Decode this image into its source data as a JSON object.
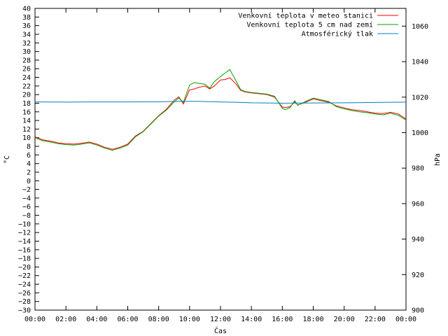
{
  "chart_data": {
    "type": "line",
    "xlabel": "Čas",
    "ylabel": "°C",
    "y2label": "hPa",
    "xlim": [
      0,
      24
    ],
    "ylim": [
      -30,
      40
    ],
    "y2lim": [
      900,
      1070
    ],
    "x_ticks": [
      "00:00",
      "02:00",
      "04:00",
      "06:00",
      "08:00",
      "10:00",
      "12:00",
      "14:00",
      "16:00",
      "18:00",
      "20:00",
      "22:00",
      "00:00"
    ],
    "y_ticks": [
      -30,
      -28,
      -26,
      -24,
      -22,
      -20,
      -18,
      -16,
      -14,
      -12,
      -10,
      -8,
      -6,
      -4,
      -2,
      0,
      2,
      4,
      6,
      8,
      10,
      12,
      14,
      16,
      18,
      20,
      22,
      24,
      26,
      28,
      30,
      32,
      34,
      36,
      38,
      40
    ],
    "y2_ticks": [
      900,
      920,
      940,
      960,
      980,
      1000,
      1020,
      1040,
      1060
    ],
    "grid": false,
    "legend_position": "top-right",
    "series": [
      {
        "name": "Venkovní teplota v meteo stanici",
        "color": "#ff0000",
        "axis": "left",
        "x": [
          0,
          0.5,
          1,
          1.5,
          2,
          2.5,
          3,
          3.5,
          4,
          4.5,
          5,
          5.5,
          6,
          6.5,
          7,
          7.5,
          8,
          8.5,
          9,
          9.3,
          9.6,
          10,
          10.3,
          10.6,
          11,
          11.3,
          11.6,
          12,
          12.3,
          12.6,
          13,
          13.3,
          13.6,
          14,
          14.5,
          15,
          15.5,
          16,
          16.2,
          16.5,
          16.8,
          17,
          17.5,
          18,
          18.5,
          19,
          19.5,
          20,
          20.5,
          21,
          21.5,
          22,
          22.5,
          23,
          23.5,
          24
        ],
        "y": [
          10.2,
          9.5,
          9.2,
          8.8,
          8.6,
          8.5,
          8.7,
          9,
          8.5,
          7.8,
          7.3,
          7.8,
          8.5,
          10.4,
          11.5,
          13.3,
          15.1,
          16.6,
          18.7,
          19.5,
          17.8,
          21.1,
          21.3,
          21.7,
          22,
          21.3,
          22,
          23.4,
          23.5,
          23.9,
          22.5,
          21,
          20.6,
          20.4,
          20.2,
          20,
          19.4,
          17.1,
          17,
          17.2,
          18.3,
          17.6,
          18.2,
          19,
          18.6,
          18.2,
          17.4,
          16.9,
          16.5,
          16.3,
          16,
          15.7,
          15.6,
          15.9,
          15.5,
          14.3
        ]
      },
      {
        "name": "Venkovní teplota 5 cm nad zemí",
        "color": "#00a000",
        "axis": "left",
        "x": [
          0,
          0.5,
          1,
          1.5,
          2,
          2.5,
          3,
          3.5,
          4,
          4.5,
          5,
          5.5,
          6,
          6.5,
          7,
          7.5,
          8,
          8.5,
          9,
          9.3,
          9.6,
          10,
          10.3,
          10.6,
          11,
          11.3,
          11.6,
          12,
          12.3,
          12.6,
          13,
          13.3,
          13.6,
          14,
          14.5,
          15,
          15.5,
          16,
          16.2,
          16.5,
          16.8,
          17,
          17.5,
          18,
          18.5,
          19,
          19.5,
          20,
          20.5,
          21,
          21.5,
          22,
          22.5,
          23,
          23.5,
          24
        ],
        "y": [
          10,
          9.3,
          9,
          8.6,
          8.4,
          8.3,
          8.5,
          8.8,
          8.3,
          7.6,
          7.1,
          7.6,
          8.3,
          10.2,
          11.4,
          13.2,
          15,
          16.4,
          18.3,
          19.2,
          18.2,
          22.2,
          22.8,
          22.6,
          22.4,
          21.5,
          23,
          24.2,
          25,
          25.8,
          23.2,
          21.2,
          20.7,
          20.5,
          20.3,
          20.1,
          19.6,
          16.8,
          16.5,
          17,
          18.6,
          17.5,
          18.4,
          19.2,
          18.8,
          18.4,
          17.2,
          16.7,
          16.3,
          16,
          15.8,
          15.5,
          15.3,
          15.7,
          15.2,
          14.1
        ]
      },
      {
        "name": "Atmosférický tlak",
        "color": "#0080c0",
        "axis": "right",
        "x": [
          0,
          2,
          4,
          6,
          8,
          9.5,
          10.5,
          12,
          13,
          14,
          16,
          18,
          20,
          22,
          24
        ],
        "y": [
          1017.3,
          1017.2,
          1017.3,
          1017.3,
          1017.4,
          1017.6,
          1017.6,
          1017.3,
          1017.1,
          1016.8,
          1016.6,
          1016.7,
          1016.8,
          1017,
          1017.2
        ]
      }
    ]
  }
}
